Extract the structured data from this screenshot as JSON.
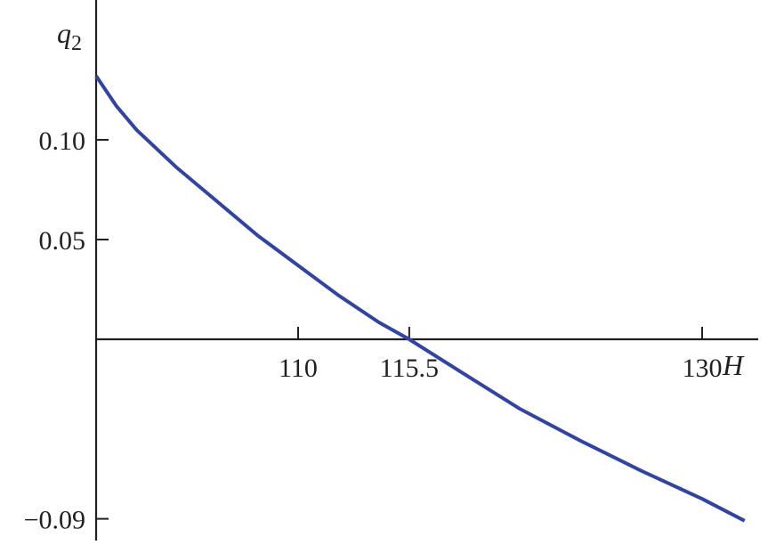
{
  "chart_data": {
    "type": "line",
    "title": "",
    "xlabel": "H",
    "ylabel": "q",
    "ylabel_subscript": "2",
    "xlim": [
      100,
      132.6
    ],
    "ylim": [
      -0.1,
      0.17
    ],
    "grid": false,
    "x_ticks": [
      {
        "value": 110,
        "label": "110"
      },
      {
        "value": 115.5,
        "label": "115.5"
      },
      {
        "value": 130,
        "label": "130"
      }
    ],
    "y_ticks": [
      {
        "value": 0.1,
        "label": "0.10"
      },
      {
        "value": 0.05,
        "label": "0.05"
      },
      {
        "value": -0.09,
        "label": "−0.09"
      }
    ],
    "series": [
      {
        "color": "#3344a0",
        "x": [
          100,
          101,
          102,
          104,
          106,
          108,
          110,
          112,
          114,
          115.5,
          118,
          121,
          124,
          127,
          130,
          132.1
        ],
        "y": [
          0.132,
          0.117,
          0.105,
          0.086,
          0.069,
          0.052,
          0.037,
          0.022,
          0.0085,
          0,
          -0.016,
          -0.035,
          -0.051,
          -0.066,
          -0.08,
          -0.091
        ]
      }
    ]
  }
}
